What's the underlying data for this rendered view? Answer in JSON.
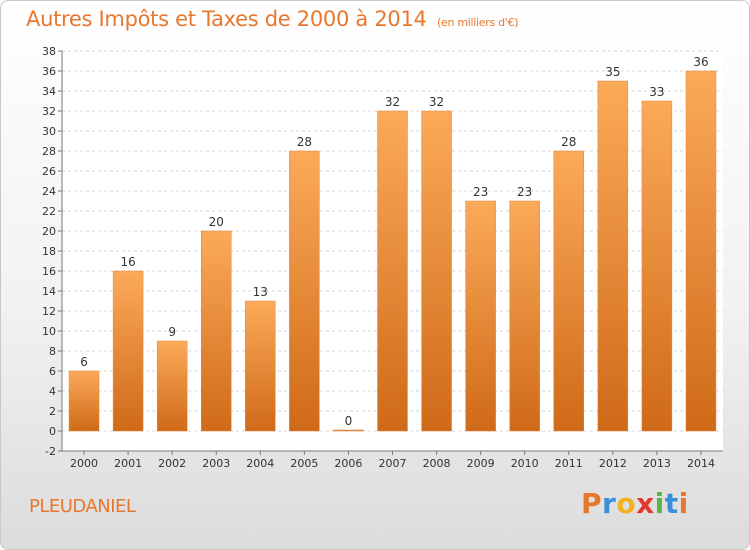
{
  "header": {
    "title": "Autres Impôts et Taxes de 2000 à 2014",
    "subtitle": "(en milliers d'€)"
  },
  "footer": {
    "commune": "PLEUDANIEL",
    "logo_letters": [
      "P",
      "r",
      "o",
      "x",
      "i",
      "t",
      "i"
    ],
    "logo_colors": [
      "#e8772e",
      "#3b8fd6",
      "#f3b11f",
      "#e23a2f",
      "#5bb544",
      "#3b8fd6",
      "#e8772e"
    ]
  },
  "colors": {
    "bar_light": "#fbaa5a",
    "bar_dark": "#cf6a18",
    "axis": "#777777",
    "text": "#333333"
  },
  "chart_data": {
    "type": "bar",
    "categories": [
      "2000",
      "2001",
      "2002",
      "2003",
      "2004",
      "2005",
      "2006",
      "2007",
      "2008",
      "2009",
      "2010",
      "2011",
      "2012",
      "2013",
      "2014"
    ],
    "values": [
      6,
      16,
      9,
      20,
      13,
      28,
      0,
      32,
      32,
      23,
      23,
      28,
      35,
      33,
      36
    ],
    "data_labels": [
      "6",
      "16",
      "9",
      "20",
      "13",
      "28",
      "0",
      "32",
      "32",
      "23",
      "23",
      "28",
      "35",
      "33",
      "36"
    ],
    "ylim": [
      -2,
      38
    ],
    "yticks": [
      "-2",
      "0",
      "2",
      "4",
      "6",
      "8",
      "10",
      "12",
      "14",
      "16",
      "18",
      "20",
      "22",
      "24",
      "26",
      "28",
      "30",
      "32",
      "34",
      "36",
      "38"
    ],
    "grid": "horizontal-dashed",
    "legend": "none"
  }
}
